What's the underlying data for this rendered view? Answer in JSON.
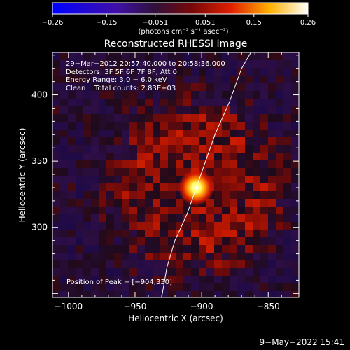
{
  "chart_data": {
    "type": "heatmap",
    "title": "Reconstructed RHESSI Image",
    "xlabel": "Heliocentric X (arcsec)",
    "ylabel": "Heliocentric Y (arcsec)",
    "xlim": [
      -1012,
      -827
    ],
    "ylim": [
      247,
      432
    ],
    "xticks": [
      -1000,
      -950,
      -900,
      -850
    ],
    "yticks": [
      300,
      350,
      400
    ],
    "xtick_labels": [
      "−1000",
      "−950",
      "−900",
      "−850"
    ],
    "ytick_labels": [
      "300",
      "350",
      "400"
    ],
    "peak": {
      "x": -904,
      "y": 330
    },
    "limb": [
      [
        -930,
        247
      ],
      [
        -926,
        270
      ],
      [
        -920,
        290
      ],
      [
        -911,
        310
      ],
      [
        -904,
        330
      ],
      [
        -897,
        350
      ],
      [
        -890,
        370
      ],
      [
        -879,
        395
      ],
      [
        -870,
        420
      ],
      [
        -863,
        432
      ]
    ],
    "colorbar": {
      "min": -0.26,
      "max": 0.26,
      "tick_values": [
        -0.26,
        -0.15,
        -0.051,
        0.051,
        0.15,
        0.26
      ],
      "tick_labels": [
        "−0.26",
        "−0.15",
        "−0.051",
        "0.051",
        "0.15",
        "0.26"
      ],
      "unit": "(photons cm⁻² s⁻¹ asec⁻²)",
      "colormap": "blue-purple-red-yellow-white"
    },
    "annotations": [
      "29−Mar−2012 20:57:40.000 to 20:58:36.000",
      "Detectors: 3F 5F 6F 7F 8F, Att 0",
      "Energy Range: 3.0 − 6.0 keV",
      "Clean    Total counts: 2.83E+03"
    ],
    "peak_label": "Position of Peak = [−904,330]"
  },
  "footer": {
    "timestamp": "9−May−2022 15:41"
  },
  "colors": {
    "background": "#000000",
    "text": "#ffffff",
    "limb": "#ffffff"
  }
}
